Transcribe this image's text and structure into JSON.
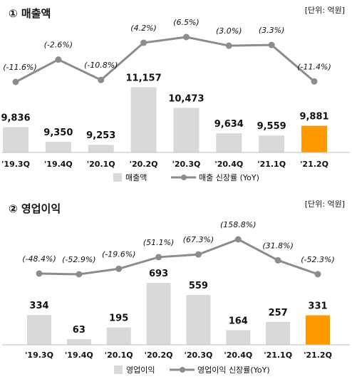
{
  "colors": {
    "bar": "#d9d9d9",
    "highlight": "#ff9900",
    "line": "#8c8c8c"
  },
  "chart_data": [
    {
      "type": "bar",
      "title": "① 매출액",
      "unit_label": "[단위: 억원]",
      "categories": [
        "'19.3Q",
        "'19.4Q",
        "'20.1Q",
        "'20.2Q",
        "'20.3Q",
        "'20.4Q",
        "'21.1Q",
        "'21.2Q"
      ],
      "series": [
        {
          "name": "매출액",
          "kind": "bar",
          "values": [
            9836,
            9350,
            9253,
            11157,
            10473,
            9634,
            9559,
            9881
          ],
          "labels": [
            "9,836",
            "9,350",
            "9,253",
            "11,157",
            "10,473",
            "9,634",
            "9,559",
            "9,881"
          ]
        },
        {
          "name": "매출 신장률 (YoY)",
          "kind": "line",
          "values": [
            -11.6,
            -2.6,
            -10.8,
            4.2,
            6.5,
            3.0,
            3.3,
            -11.4
          ],
          "labels": [
            "(-11.6%)",
            "(-2.6%)",
            "(-10.8%)",
            "(4.2%)",
            "(6.5%)",
            "(3.0%)",
            "(3.3%)",
            "(-11.4%)"
          ]
        }
      ],
      "highlight_index": 7
    },
    {
      "type": "bar",
      "title": "② 영업이익",
      "unit_label": "[단위: 억원]",
      "categories": [
        "'19.3Q",
        "'19.4Q",
        "'20.1Q",
        "'20.2Q",
        "'20.3Q",
        "'20.4Q",
        "'21.1Q",
        "'21.2Q"
      ],
      "series": [
        {
          "name": "영업이익",
          "kind": "bar",
          "values": [
            334,
            63,
            195,
            693,
            559,
            164,
            257,
            331
          ],
          "labels": [
            "334",
            "63",
            "195",
            "693",
            "559",
            "164",
            "257",
            "331"
          ]
        },
        {
          "name": "영업이익 신장률(YoY)",
          "kind": "line",
          "values": [
            -48.4,
            -52.9,
            -19.6,
            51.1,
            67.3,
            158.8,
            31.8,
            -52.3
          ],
          "labels": [
            "(-48.4%)",
            "(-52.9%)",
            "(-19.6%)",
            "(51.1%)",
            "(67.3%)",
            "(158.8%)",
            "(31.8%)",
            "(-52.3%)"
          ]
        }
      ],
      "highlight_index": 7
    }
  ]
}
